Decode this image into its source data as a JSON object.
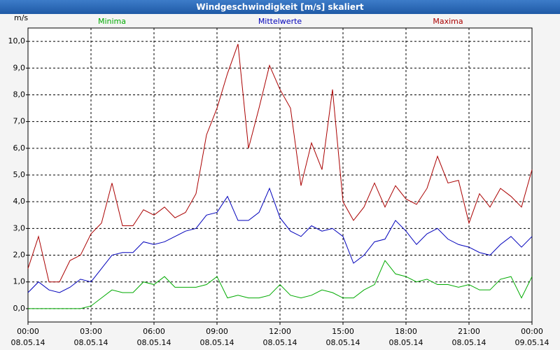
{
  "chart_data": {
    "type": "line",
    "title": "Windgeschwindigkeit [m/s] skaliert",
    "y_label": "m/s",
    "x": [
      0,
      0.5,
      1,
      1.5,
      2,
      2.5,
      3,
      3.5,
      4,
      4.5,
      5,
      5.5,
      6,
      6.5,
      7,
      7.5,
      8,
      8.5,
      9,
      9.5,
      10,
      10.5,
      11,
      11.5,
      12,
      12.5,
      13,
      13.5,
      14,
      14.5,
      15,
      15.5,
      16,
      16.5,
      17,
      17.5,
      18,
      18.5,
      19,
      19.5,
      20,
      20.5,
      21,
      21.5,
      22,
      22.5,
      23,
      23.5,
      24
    ],
    "series": [
      {
        "name": "Minima",
        "color": "#00aa00",
        "values": [
          0.0,
          0.0,
          0.0,
          0.0,
          0.0,
          0.0,
          0.1,
          0.4,
          0.7,
          0.6,
          0.6,
          1.0,
          0.9,
          1.2,
          0.8,
          0.8,
          0.8,
          0.9,
          1.2,
          0.4,
          0.5,
          0.4,
          0.4,
          0.5,
          0.9,
          0.5,
          0.4,
          0.5,
          0.7,
          0.6,
          0.4,
          0.4,
          0.7,
          0.9,
          1.8,
          1.3,
          1.2,
          1.0,
          1.1,
          0.9,
          0.9,
          0.8,
          0.9,
          0.7,
          0.7,
          1.1,
          1.2,
          0.4,
          1.2
        ]
      },
      {
        "name": "Mittelwerte",
        "color": "#0000bb",
        "values": [
          0.6,
          1.0,
          0.7,
          0.6,
          0.8,
          1.1,
          1.0,
          1.5,
          2.0,
          2.1,
          2.1,
          2.5,
          2.4,
          2.5,
          2.7,
          2.9,
          3.0,
          3.5,
          3.6,
          4.2,
          3.3,
          3.3,
          3.6,
          4.5,
          3.4,
          2.9,
          2.7,
          3.1,
          2.9,
          3.0,
          2.7,
          1.7,
          2.0,
          2.5,
          2.6,
          3.3,
          2.9,
          2.4,
          2.8,
          3.0,
          2.6,
          2.4,
          2.3,
          2.1,
          2.0,
          2.4,
          2.7,
          2.3,
          2.7
        ]
      },
      {
        "name": "Maxima",
        "color": "#aa0000",
        "values": [
          1.5,
          2.7,
          1.0,
          1.0,
          1.8,
          2.0,
          2.8,
          3.2,
          4.7,
          3.1,
          3.1,
          3.7,
          3.5,
          3.8,
          3.4,
          3.6,
          4.3,
          6.5,
          7.5,
          8.8,
          9.9,
          6.0,
          7.5,
          9.1,
          8.2,
          7.5,
          4.6,
          6.2,
          5.2,
          8.2,
          4.0,
          3.3,
          3.8,
          4.7,
          3.8,
          4.6,
          4.1,
          3.9,
          4.5,
          5.7,
          4.7,
          4.8,
          3.2,
          4.3,
          3.8,
          4.5,
          4.2,
          3.8,
          5.2
        ]
      }
    ],
    "xlim": [
      0,
      24
    ],
    "xticks": [
      {
        "value": 0,
        "label": "00:00"
      },
      {
        "value": 3,
        "label": "03:00"
      },
      {
        "value": 6,
        "label": "06:00"
      },
      {
        "value": 9,
        "label": "09:00"
      },
      {
        "value": 12,
        "label": "12:00"
      },
      {
        "value": 15,
        "label": "15:00"
      },
      {
        "value": 18,
        "label": "18:00"
      },
      {
        "value": 21,
        "label": "21:00"
      },
      {
        "value": 24,
        "label": "00:00"
      }
    ],
    "xtick_dates": [
      "08.05.14",
      "08.05.14",
      "08.05.14",
      "08.05.14",
      "08.05.14",
      "08.05.14",
      "08.05.14",
      "08.05.14",
      "09.05.14"
    ],
    "ylim": [
      -0.5,
      10.5
    ],
    "yticks": [
      {
        "value": 0,
        "label": "0,0"
      },
      {
        "value": 1,
        "label": "1,0"
      },
      {
        "value": 2,
        "label": "2,0"
      },
      {
        "value": 3,
        "label": "3,0"
      },
      {
        "value": 4,
        "label": "4,0"
      },
      {
        "value": 5,
        "label": "5,0"
      },
      {
        "value": 6,
        "label": "6,0"
      },
      {
        "value": 7,
        "label": "7,0"
      },
      {
        "value": 8,
        "label": "8,0"
      },
      {
        "value": 9,
        "label": "9,0"
      },
      {
        "value": 10,
        "label": "10,0"
      }
    ],
    "grid": true
  }
}
